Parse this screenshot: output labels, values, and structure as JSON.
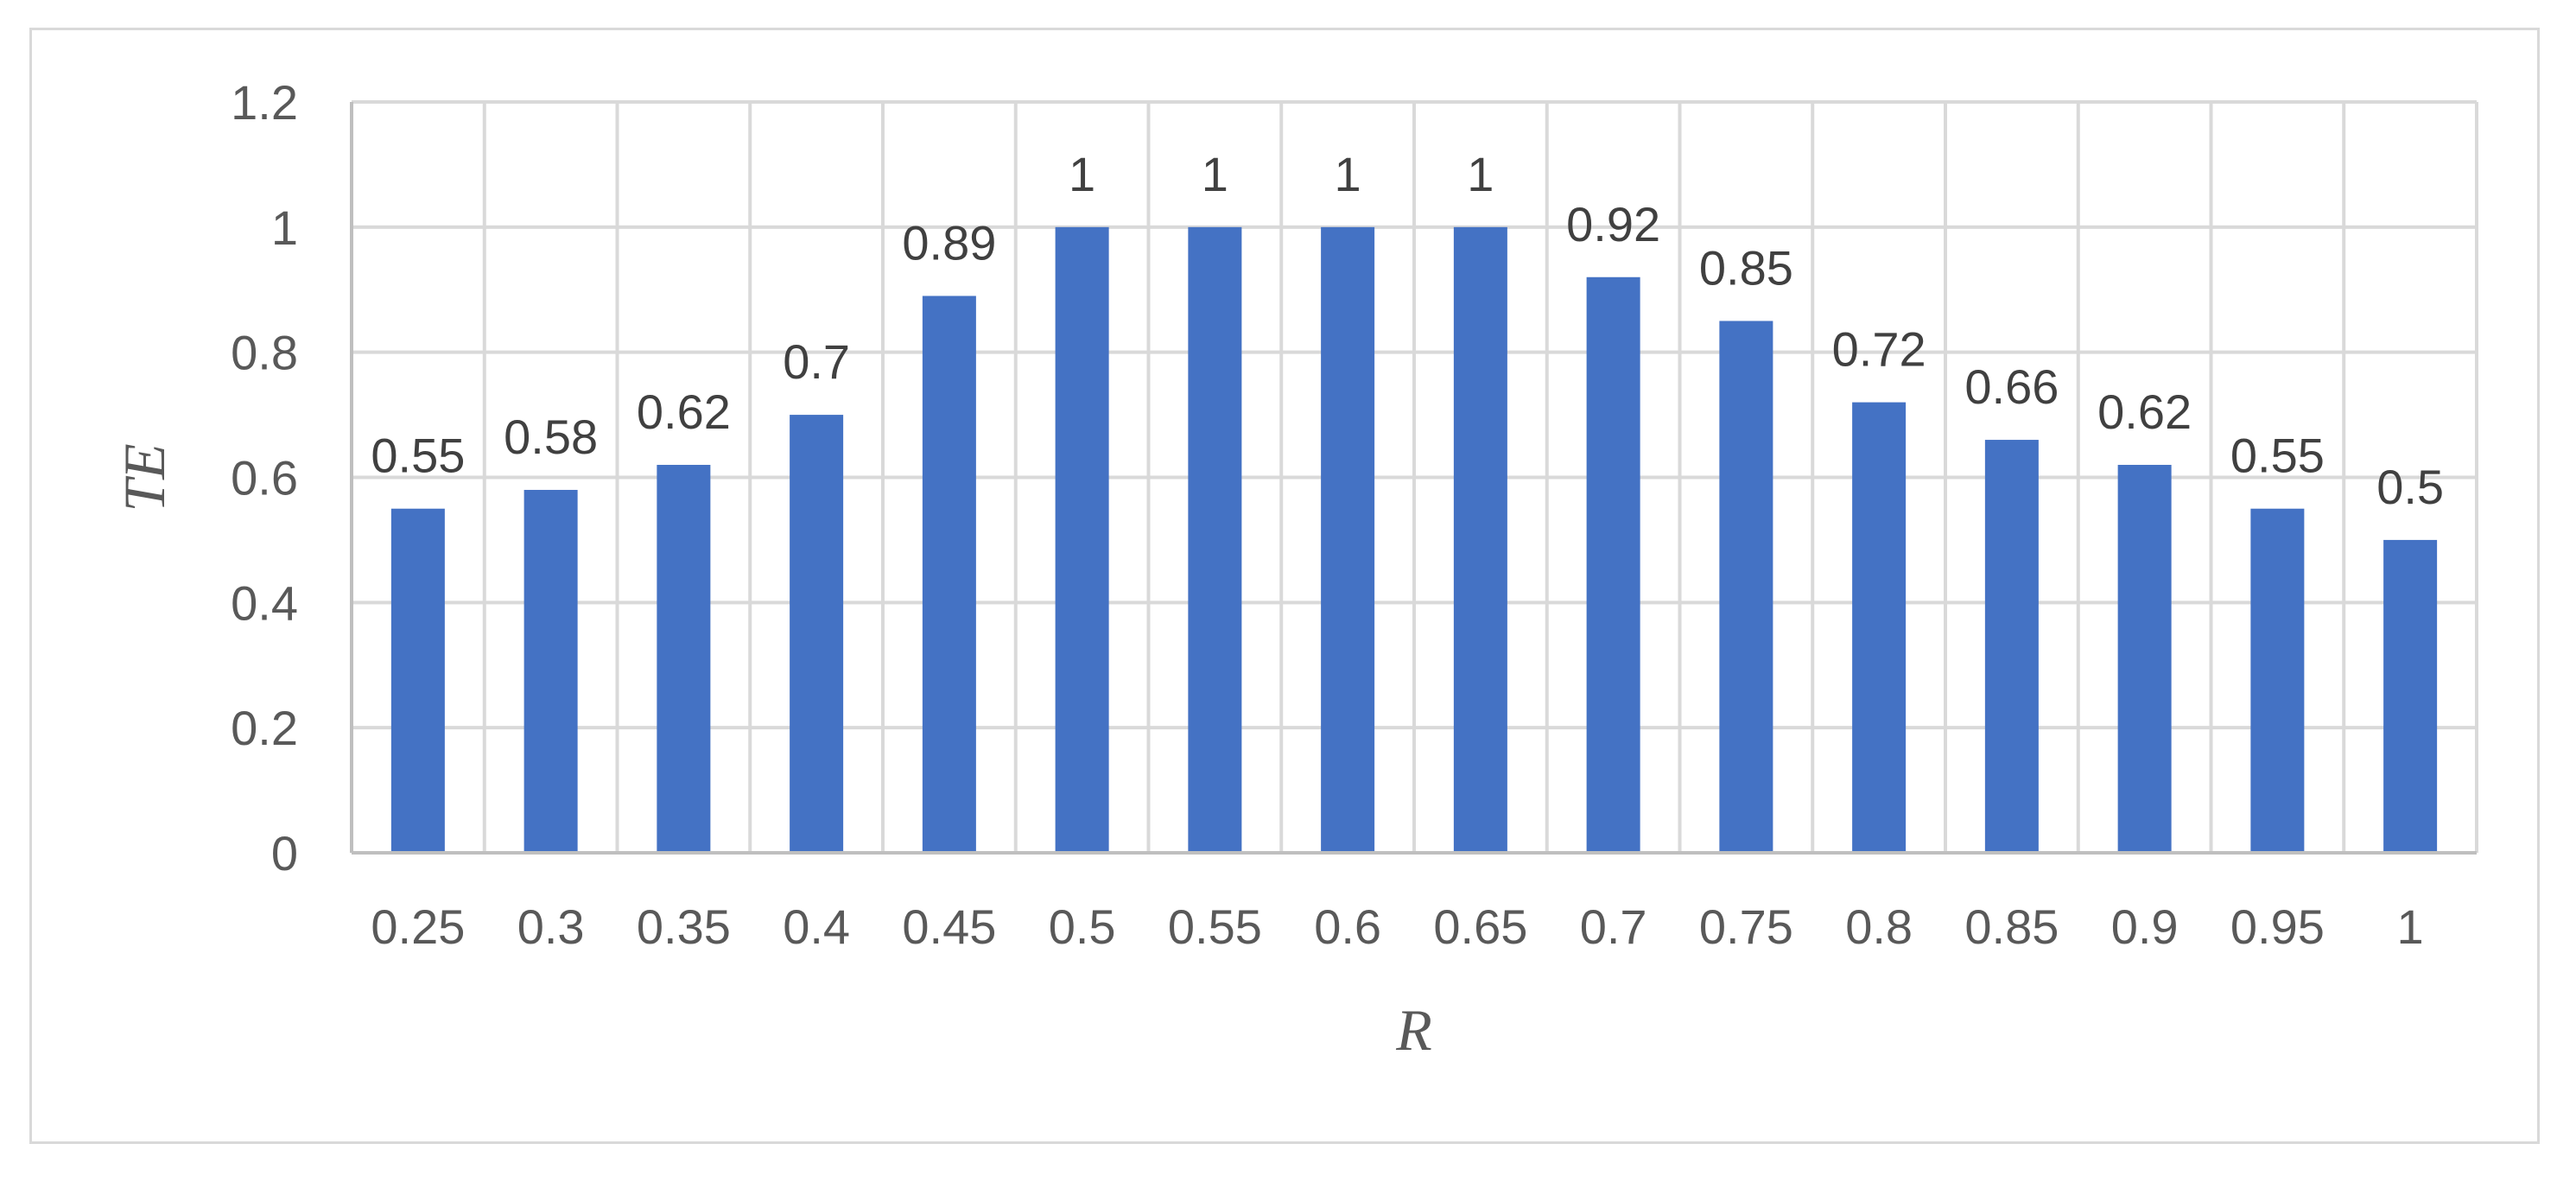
{
  "chart_data": {
    "type": "bar",
    "categories": [
      "0.25",
      "0.3",
      "0.35",
      "0.4",
      "0.45",
      "0.5",
      "0.55",
      "0.6",
      "0.65",
      "0.7",
      "0.75",
      "0.8",
      "0.85",
      "0.9",
      "0.95",
      "1"
    ],
    "values": [
      0.55,
      0.58,
      0.62,
      0.7,
      0.89,
      1,
      1,
      1,
      1,
      0.92,
      0.85,
      0.72,
      0.66,
      0.62,
      0.55,
      0.5
    ],
    "data_labels": [
      "0.55",
      "0.58",
      "0.62",
      "0.7",
      "0.89",
      "1",
      "1",
      "1",
      "1",
      "0.92",
      "0.85",
      "0.72",
      "0.66",
      "0.62",
      "0.55",
      "0.5"
    ],
    "title": "",
    "xlabel": "R",
    "ylabel": "TE",
    "ylim": [
      0,
      1.2
    ],
    "yticks": [
      "0",
      "0.2",
      "0.4",
      "0.6",
      "0.8",
      "1",
      "1.2"
    ],
    "ytick_values": [
      0,
      0.2,
      0.4,
      0.6,
      0.8,
      1,
      1.2
    ],
    "grid": "both",
    "legend": "none",
    "colors": {
      "bar": "#4472c4",
      "grid": "#d9d9d9",
      "axis": "#bfbfbf",
      "tick_text": "#595959",
      "label_text": "#404040"
    }
  }
}
